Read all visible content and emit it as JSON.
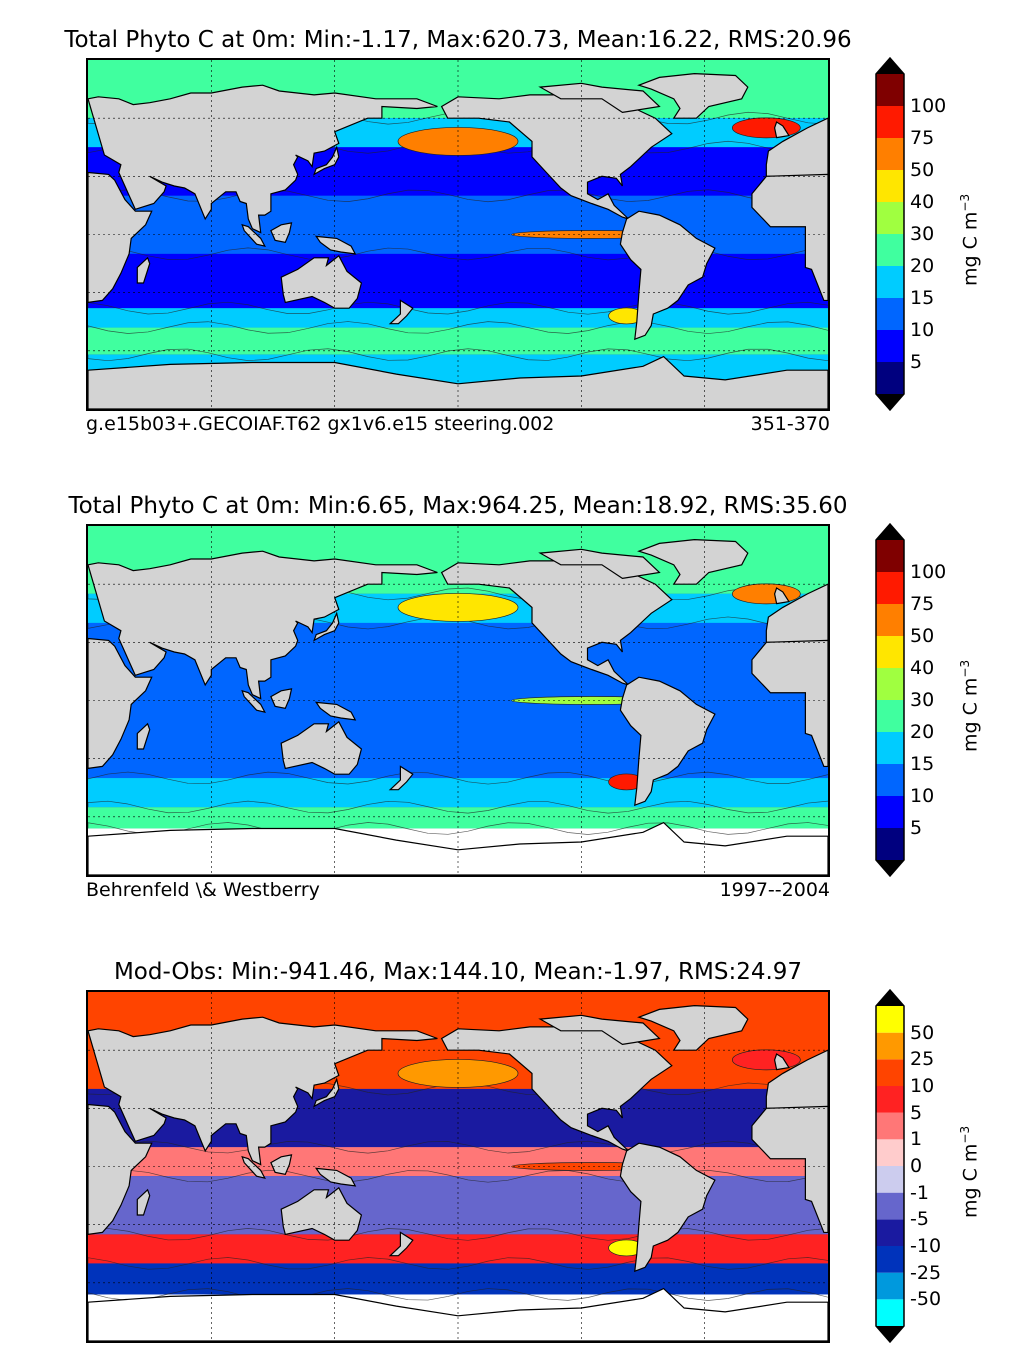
{
  "panels": [
    {
      "title": "Total Phyto C at 0m: Min:-1.17, Max:620.73, Mean:16.22, RMS:20.96",
      "caption_left": "g.e15b03+.GECOIAF.T62 gx1v6.e15 steering.002",
      "caption_right": "351-370",
      "unit": "mg C m",
      "unit_exp": "−3",
      "colorbar": {
        "ticks": [
          "5",
          "10",
          "15",
          "20",
          "30",
          "40",
          "50",
          "75",
          "100"
        ],
        "colors": [
          "#00007f",
          "#0000ff",
          "#0066ff",
          "#00ccff",
          "#40ff9f",
          "#a0ff40",
          "#ffe600",
          "#ff7f00",
          "#ff1a00",
          "#7f0000"
        ],
        "extend_low": "#000000",
        "extend_high": "#000000"
      },
      "map": {
        "ocean_bands": [
          {
            "lat_from": 90,
            "lat_to": 60,
            "color": "#40ff9f"
          },
          {
            "lat_from": 60,
            "lat_to": 45,
            "color": "#00ccff"
          },
          {
            "lat_from": 45,
            "lat_to": 20,
            "color": "#0000ff"
          },
          {
            "lat_from": 20,
            "lat_to": -10,
            "color": "#0066ff"
          },
          {
            "lat_from": -10,
            "lat_to": -38,
            "color": "#0000ff"
          },
          {
            "lat_from": -38,
            "lat_to": -48,
            "color": "#00ccff"
          },
          {
            "lat_from": -48,
            "lat_to": -62,
            "color": "#40ff9f"
          },
          {
            "lat_from": -62,
            "lat_to": -90,
            "color": "#00ccff"
          }
        ],
        "hotspots": [
          "#ff7f00",
          "#ffe600",
          "#ff7f00",
          "#ff1a00"
        ]
      }
    },
    {
      "title": "Total Phyto C at 0m: Min:6.65, Max:964.25, Mean:18.92, RMS:35.60",
      "caption_left": "Behrenfeld \\& Westberry",
      "caption_right": "1997--2004",
      "unit": "mg C m",
      "unit_exp": "−3",
      "colorbar": {
        "ticks": [
          "5",
          "10",
          "15",
          "20",
          "30",
          "40",
          "50",
          "75",
          "100"
        ],
        "colors": [
          "#00007f",
          "#0000ff",
          "#0066ff",
          "#00ccff",
          "#40ff9f",
          "#a0ff40",
          "#ffe600",
          "#ff7f00",
          "#ff1a00",
          "#7f0000"
        ],
        "extend_low": "#000000",
        "extend_high": "#000000"
      },
      "map": {
        "ocean_bands": [
          {
            "lat_from": 90,
            "lat_to": 55,
            "color": "#40ff9f"
          },
          {
            "lat_from": 55,
            "lat_to": 40,
            "color": "#00ccff"
          },
          {
            "lat_from": 40,
            "lat_to": -40,
            "color": "#0066ff"
          },
          {
            "lat_from": -40,
            "lat_to": -55,
            "color": "#00ccff"
          },
          {
            "lat_from": -55,
            "lat_to": -66,
            "color": "#40ff9f"
          },
          {
            "lat_from": -66,
            "lat_to": -90,
            "color": "#ffffff"
          }
        ],
        "hotspots": [
          "#ffe600",
          "#ff1a00",
          "#a0ff40",
          "#ff7f00"
        ]
      }
    },
    {
      "title": "Mod-Obs: Min:-941.46, Max:144.10, Mean:-1.97, RMS:24.97",
      "caption_left": "",
      "caption_right": "",
      "unit": "mg C m",
      "unit_exp": "−3",
      "colorbar": {
        "ticks": [
          "-50",
          "-25",
          "-10",
          "-5",
          "-1",
          "0",
          "1",
          "5",
          "10",
          "25",
          "50"
        ],
        "colors": [
          "#00ffff",
          "#0099dd",
          "#0033bb",
          "#1a1aa0",
          "#6666cc",
          "#ccccee",
          "#ffcccc",
          "#ff7777",
          "#ff2222",
          "#ff4400",
          "#ff9900",
          "#ffff00"
        ],
        "extend_low": "#000000",
        "extend_high": "#000000"
      },
      "map": {
        "ocean_bands": [
          {
            "lat_from": 90,
            "lat_to": 40,
            "color": "#ff4400"
          },
          {
            "lat_from": 40,
            "lat_to": 10,
            "color": "#1a1aa0"
          },
          {
            "lat_from": 10,
            "lat_to": -5,
            "color": "#ff7777"
          },
          {
            "lat_from": -5,
            "lat_to": -35,
            "color": "#6666cc"
          },
          {
            "lat_from": -35,
            "lat_to": -50,
            "color": "#ff2222"
          },
          {
            "lat_from": -50,
            "lat_to": -66,
            "color": "#0033bb"
          },
          {
            "lat_from": -66,
            "lat_to": -90,
            "color": "#ffffff"
          }
        ],
        "hotspots": [
          "#ff9900",
          "#ffff00",
          "#ff4400",
          "#ff2222"
        ]
      }
    }
  ]
}
